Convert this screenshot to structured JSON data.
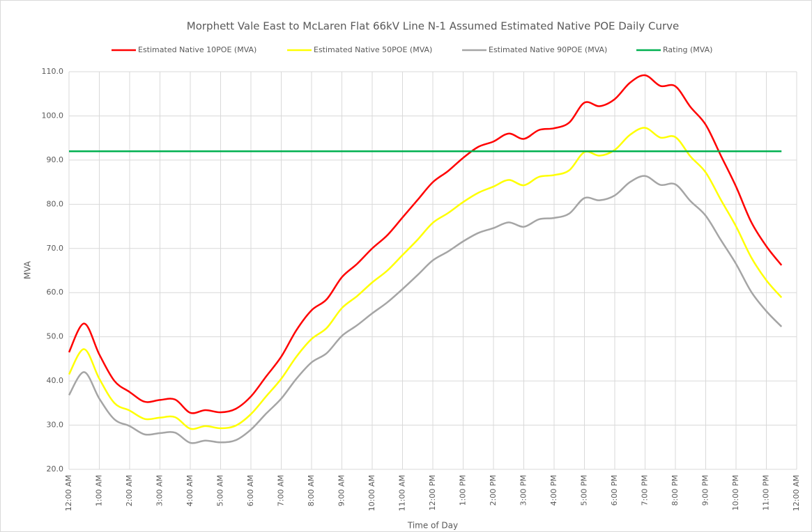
{
  "chart_data": {
    "type": "line",
    "title": "Morphett Vale East to McLaren Flat 66kV Line N-1 Assumed Estimated Native POE Daily Curve",
    "x_label": "Time of Day",
    "y_label": "MVA",
    "categories": [
      "12:00 AM",
      null,
      "1:00 AM",
      null,
      "2:00 AM",
      null,
      "3:00 AM",
      null,
      "4:00 AM",
      null,
      "5:00 AM",
      null,
      "6:00 AM",
      null,
      "7:00 AM",
      null,
      "8:00 AM",
      null,
      "9:00 AM",
      null,
      "10:00 AM",
      null,
      "11:00 AM",
      null,
      "12:00 PM",
      null,
      "1:00 PM",
      null,
      "2:00 PM",
      null,
      "3:00 PM",
      null,
      "4:00 PM",
      null,
      "5:00 PM",
      null,
      "6:00 PM",
      null,
      "7:00 PM",
      null,
      "8:00 PM",
      null,
      "9:00 PM",
      null,
      "10:00 PM",
      null,
      "11:00 PM",
      null,
      "12:00 AM"
    ],
    "series": [
      {
        "name": "Estimated Native 10POE (MVA)",
        "color": "#ff0000",
        "values": [
          46.5,
          53,
          46,
          40,
          37.5,
          35.3,
          35.7,
          35.8,
          32.8,
          33.4,
          32.9,
          33.7,
          36.5,
          41,
          45.5,
          51.5,
          56,
          58.5,
          63.5,
          66.5,
          70,
          73,
          77,
          81,
          85,
          87.5,
          90.5,
          93,
          94.2,
          96,
          94.8,
          96.8,
          97.2,
          98.5,
          103,
          102.2,
          103.8,
          107.5,
          109.2,
          106.8,
          106.7,
          102,
          98,
          91,
          84,
          76,
          70.5,
          66.2,
          null
        ]
      },
      {
        "name": "Estimated Native 50POE (MVA)",
        "color": "#ffff00",
        "values": [
          41.5,
          47.2,
          40.5,
          35,
          33.3,
          31.4,
          31.7,
          31.8,
          29.2,
          29.8,
          29.3,
          29.9,
          32.5,
          36.5,
          40.5,
          45.5,
          49.5,
          52,
          56.5,
          59.2,
          62.3,
          65,
          68.5,
          72,
          75.8,
          78,
          80.5,
          82.6,
          84,
          85.5,
          84.3,
          86.2,
          86.6,
          87.7,
          91.8,
          91,
          92.3,
          95.7,
          97.3,
          95.1,
          95.2,
          90.8,
          87.2,
          81,
          75,
          68,
          62.8,
          58.9,
          null
        ]
      },
      {
        "name": "Estimated Native 90POE (MVA)",
        "color": "#a5a5a5",
        "values": [
          36.8,
          42,
          36,
          31.3,
          29.8,
          27.9,
          28.2,
          28.3,
          26,
          26.5,
          26.1,
          26.6,
          29,
          32.6,
          36,
          40.5,
          44.2,
          46.3,
          50.2,
          52.6,
          55.3,
          57.8,
          60.8,
          64,
          67.3,
          69.3,
          71.6,
          73.5,
          74.6,
          75.9,
          74.9,
          76.6,
          76.9,
          77.9,
          81.4,
          80.9,
          82,
          85,
          86.4,
          84.4,
          84.5,
          80.7,
          77.4,
          71.9,
          66.5,
          60.2,
          55.8,
          52.3,
          null
        ]
      },
      {
        "name": "Rating (MVA)",
        "color": "#00b050",
        "values": [
          92,
          92,
          92,
          92,
          92,
          92,
          92,
          92,
          92,
          92,
          92,
          92,
          92,
          92,
          92,
          92,
          92,
          92,
          92,
          92,
          92,
          92,
          92,
          92,
          92,
          92,
          92,
          92,
          92,
          92,
          92,
          92,
          92,
          92,
          92,
          92,
          92,
          92,
          92,
          92,
          92,
          92,
          92,
          92,
          92,
          92,
          92,
          92,
          null
        ]
      }
    ],
    "ylim": [
      20,
      110
    ],
    "yticks": [
      {
        "value": 20,
        "label": "20.0"
      },
      {
        "value": 30,
        "label": "30.0"
      },
      {
        "value": 40,
        "label": "40.0"
      },
      {
        "value": 50,
        "label": "50.0"
      },
      {
        "value": 60,
        "label": "60.0"
      },
      {
        "value": 70,
        "label": "70.0"
      },
      {
        "value": 80,
        "label": "80.0"
      },
      {
        "value": 90,
        "label": "90.0"
      },
      {
        "value": 100,
        "label": "100.0"
      },
      {
        "value": 110,
        "label": "110.0"
      }
    ],
    "grid": true,
    "legend": "top",
    "smooth": true
  }
}
